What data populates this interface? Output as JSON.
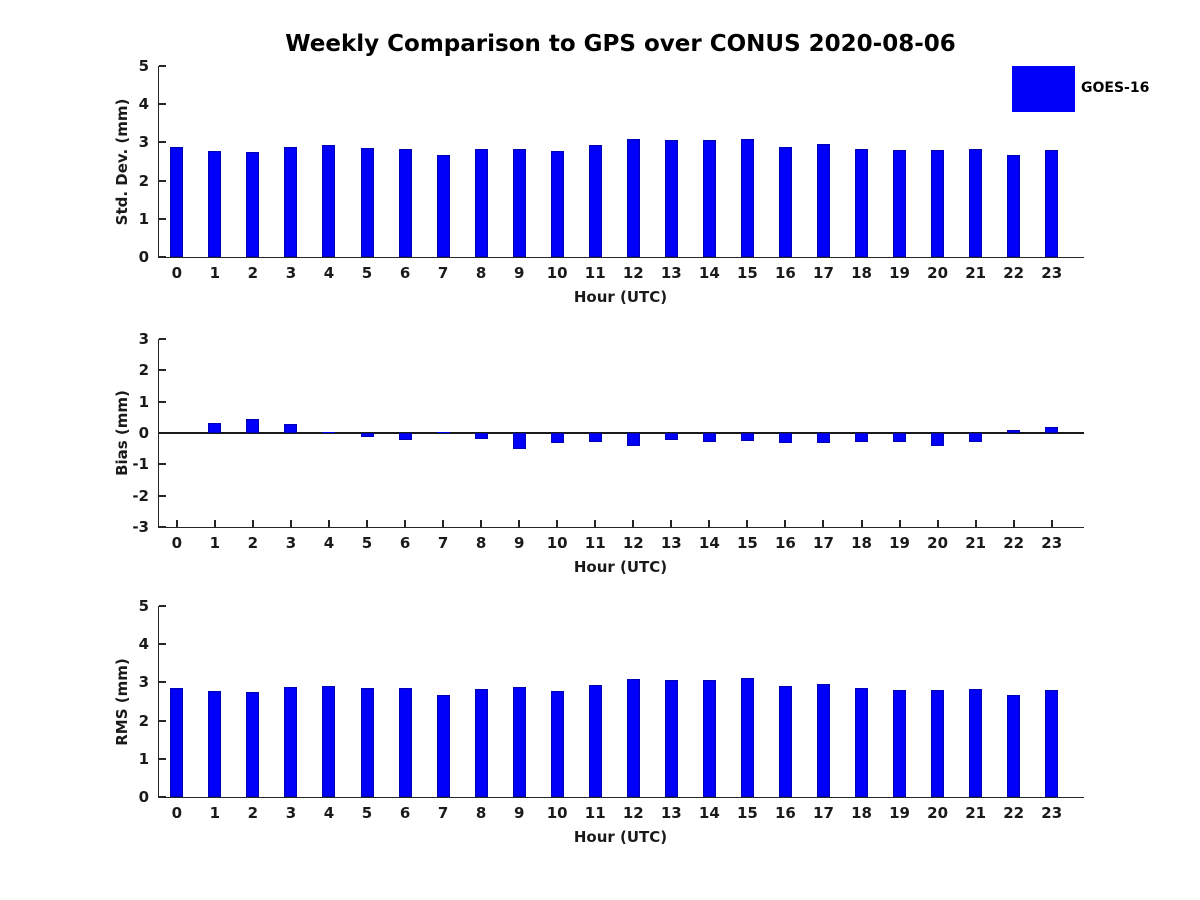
{
  "title": "Weekly Comparison to GPS over CONUS 2020-08-06",
  "legend": {
    "label": "GOES-16",
    "color": "#0000f8",
    "position": "top-right-outside"
  },
  "colors": {
    "bar_fill": "#0000f8",
    "bar_edge": "#0000b4",
    "axis": "#262626",
    "text": "#1a1a1a",
    "background": "#ffffff"
  },
  "chart_data": [
    {
      "type": "bar",
      "panel": "std-dev",
      "series_name": "GOES-16",
      "xlabel": "Hour (UTC)",
      "ylabel": "Std. Dev. (mm)",
      "ylim": [
        0,
        5
      ],
      "yticks": [
        0,
        1,
        2,
        3,
        4,
        5
      ],
      "grid": false,
      "categories": [
        "0",
        "1",
        "2",
        "3",
        "4",
        "5",
        "6",
        "7",
        "8",
        "9",
        "10",
        "11",
        "12",
        "13",
        "14",
        "15",
        "16",
        "17",
        "18",
        "19",
        "20",
        "21",
        "22",
        "23"
      ],
      "values": [
        2.88,
        2.78,
        2.75,
        2.88,
        2.93,
        2.85,
        2.84,
        2.68,
        2.82,
        2.82,
        2.78,
        2.93,
        3.08,
        3.06,
        3.05,
        3.1,
        2.89,
        2.97,
        2.82,
        2.79,
        2.8,
        2.83,
        2.67,
        2.79
      ]
    },
    {
      "type": "bar",
      "panel": "bias",
      "series_name": "GOES-16",
      "xlabel": "Hour (UTC)",
      "ylabel": "Bias (mm)",
      "ylim": [
        -3,
        3
      ],
      "yticks": [
        -3,
        -2,
        -1,
        0,
        1,
        2,
        3
      ],
      "grid": false,
      "categories": [
        "0",
        "1",
        "2",
        "3",
        "4",
        "5",
        "6",
        "7",
        "8",
        "9",
        "10",
        "11",
        "12",
        "13",
        "14",
        "15",
        "16",
        "17",
        "18",
        "19",
        "20",
        "21",
        "22",
        "23"
      ],
      "values": [
        0.0,
        0.33,
        0.45,
        0.3,
        0.04,
        -0.12,
        -0.22,
        0.03,
        -0.18,
        -0.5,
        -0.33,
        -0.3,
        -0.42,
        -0.23,
        -0.29,
        -0.27,
        -0.31,
        -0.33,
        -0.29,
        -0.3,
        -0.42,
        -0.28,
        0.11,
        0.19
      ]
    },
    {
      "type": "bar",
      "panel": "rms",
      "series_name": "GOES-16",
      "xlabel": "Hour (UTC)",
      "ylabel": "RMS (mm)",
      "ylim": [
        0,
        5
      ],
      "yticks": [
        0,
        1,
        2,
        3,
        4,
        5
      ],
      "grid": false,
      "categories": [
        "0",
        "1",
        "2",
        "3",
        "4",
        "5",
        "6",
        "7",
        "8",
        "9",
        "10",
        "11",
        "12",
        "13",
        "14",
        "15",
        "16",
        "17",
        "18",
        "19",
        "20",
        "21",
        "22",
        "23"
      ],
      "values": [
        2.86,
        2.78,
        2.75,
        2.89,
        2.91,
        2.86,
        2.86,
        2.68,
        2.82,
        2.88,
        2.77,
        2.94,
        3.09,
        3.06,
        3.05,
        3.11,
        2.9,
        2.97,
        2.85,
        2.8,
        2.81,
        2.84,
        2.68,
        2.8
      ]
    }
  ]
}
